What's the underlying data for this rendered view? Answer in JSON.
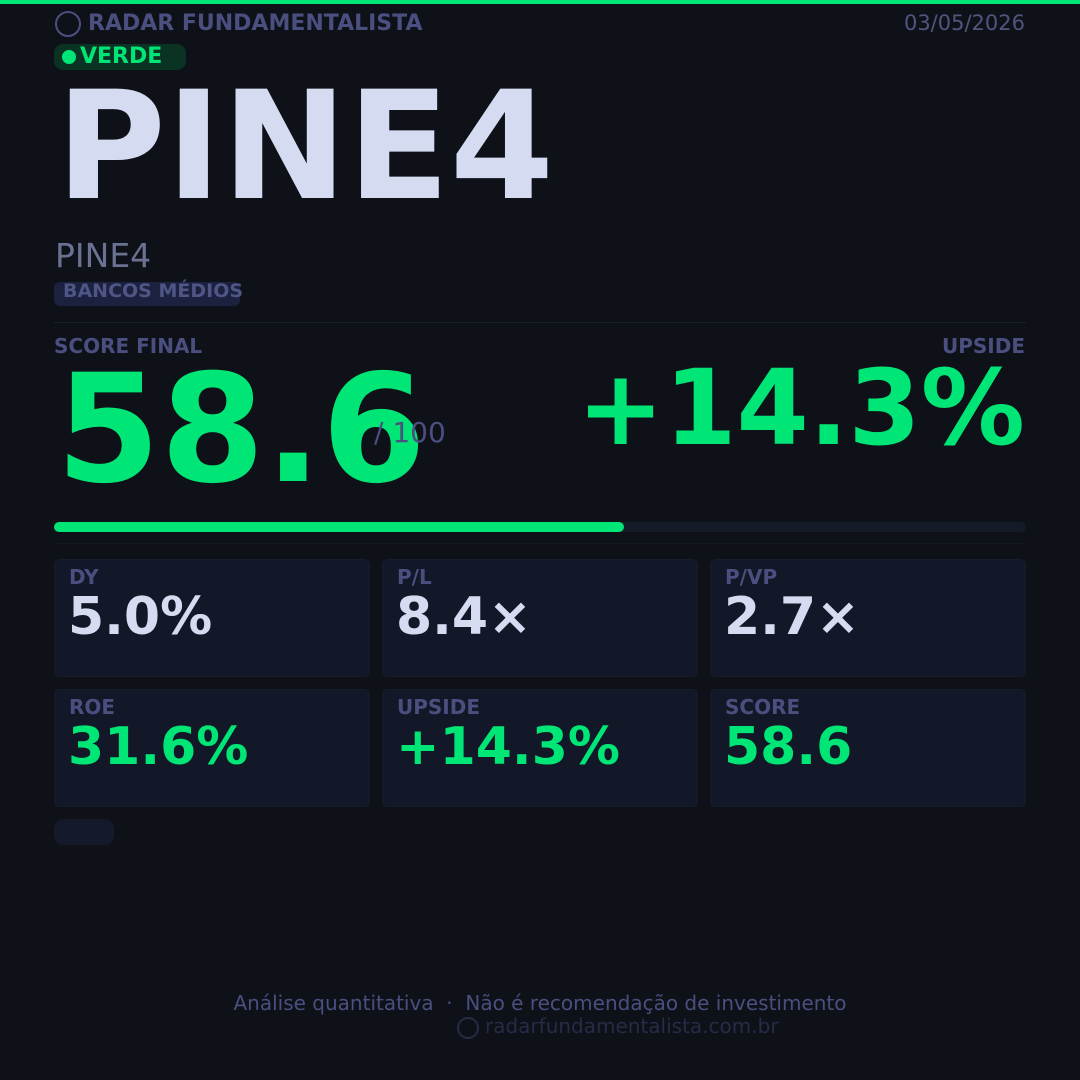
{
  "header": {
    "brand": "RADAR FUNDAMENTALISTA",
    "date": "03/05/2026"
  },
  "badge": "VERDE",
  "ticker": "PINE4",
  "company": "PINE4",
  "sector": "BANCOS MÉDIOS",
  "score": {
    "label": "SCORE FINAL",
    "value": 58.6,
    "max": {
      "value": 100,
      "label": "/ 100"
    }
  },
  "upside": {
    "label": "UPSIDE",
    "value": "+14.3%"
  },
  "metrics": [
    {
      "label": "DY",
      "value": "5.0%"
    },
    {
      "label": "P/L",
      "value": "8.4×"
    },
    {
      "label": "P/VP",
      "value": "2.7×"
    },
    {
      "label": "ROE",
      "value": "31.6%"
    },
    {
      "label": "UPSIDE",
      "value": "+14.3%"
    },
    {
      "label": "SCORE",
      "value": "58.6"
    }
  ],
  "footer": {
    "disclaimer": "Análise quantitativa  ·  Não é recomendação de investimento",
    "url": "radarfundamentalista.com.br"
  }
}
